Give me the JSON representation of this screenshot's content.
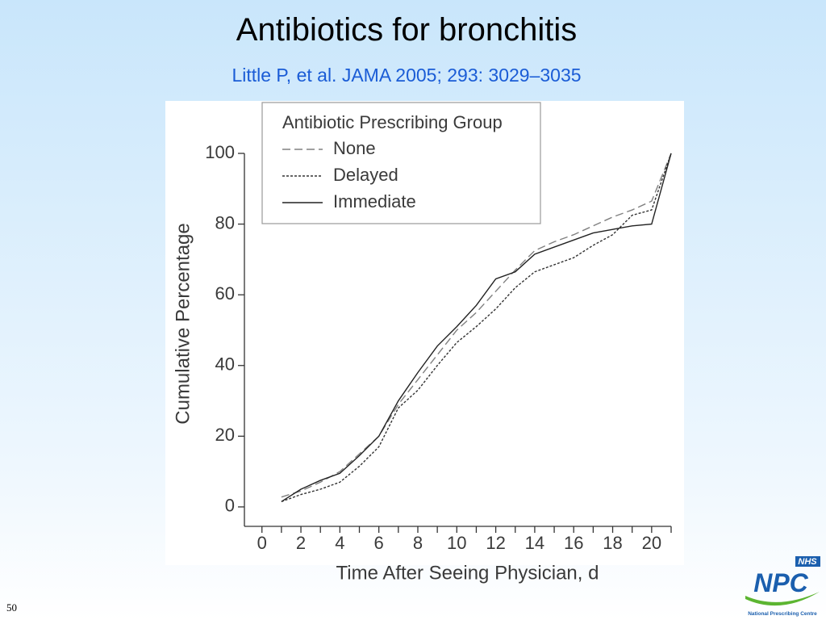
{
  "slide": {
    "title": "Antibiotics for bronchitis",
    "subtitle": "Little P, et al. JAMA 2005; 293: 3029–3035",
    "page_number": "50",
    "logo": {
      "badge": "NHS",
      "name": "NPC",
      "caption": "National Prescribing Centre"
    }
  },
  "chart_data": {
    "type": "line",
    "x_label": "Time After Seeing Physician, d",
    "y_label": "Cumulative Percentage",
    "legend_title": "Antibiotic Prescribing Group",
    "legend": "upper left",
    "x": [
      1,
      2,
      3,
      4,
      5,
      6,
      7,
      8,
      9,
      10,
      11,
      12,
      13,
      14,
      15,
      16,
      17,
      18,
      19,
      20,
      21
    ],
    "series": [
      {
        "name": "None",
        "color": "#808080",
        "line_style": "dashed",
        "values": [
          2.8,
          4.5,
          7,
          10,
          15,
          20,
          29,
          36,
          43,
          50,
          55,
          61,
          67,
          72.5,
          75,
          77,
          79.5,
          82,
          84,
          86.5,
          100
        ]
      },
      {
        "name": "Delayed",
        "color": "#333333",
        "line_style": "dotted",
        "values": [
          1.5,
          3.5,
          5,
          7,
          11.5,
          17,
          28,
          33,
          40,
          46.5,
          51,
          56,
          62,
          66.5,
          68.5,
          70.5,
          74,
          77,
          82.5,
          84,
          100
        ]
      },
      {
        "name": "Immediate",
        "color": "#222222",
        "line_style": "solid",
        "values": [
          1.5,
          5,
          7.5,
          9.5,
          14.5,
          20,
          30,
          38,
          45.5,
          51,
          57,
          64.5,
          66.5,
          71.5,
          73.5,
          75.5,
          77.5,
          78.5,
          79.5,
          80,
          100
        ]
      }
    ],
    "xlim": [
      -0.9,
      21
    ],
    "ylim": [
      -5.5,
      100
    ],
    "xticks": [
      0,
      2,
      4,
      6,
      8,
      10,
      12,
      14,
      16,
      18,
      20
    ],
    "xminor_ticks": [
      1,
      3,
      5,
      7,
      9,
      11,
      13,
      15,
      17,
      19,
      21
    ],
    "yticks": [
      0,
      20,
      40,
      60,
      80,
      100
    ],
    "grid": false
  }
}
